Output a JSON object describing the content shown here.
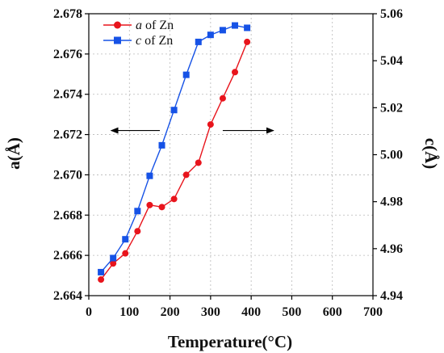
{
  "chart_data": {
    "type": "line",
    "xlabel": "Temperature(°C)",
    "ylabel_left": "a(Å)",
    "ylabel_right": "c(Å)",
    "xlim": [
      0,
      700
    ],
    "ylim_left": [
      2.664,
      2.678
    ],
    "ylim_right": [
      4.94,
      5.06
    ],
    "x_ticks": [
      "0",
      "100",
      "200",
      "300",
      "400",
      "500",
      "600",
      "700"
    ],
    "y_left_ticks": [
      "2.664",
      "2.666",
      "2.668",
      "2.670",
      "2.672",
      "2.674",
      "2.676",
      "2.678"
    ],
    "y_right_ticks": [
      "4.94",
      "4.96",
      "4.98",
      "5.00",
      "5.02",
      "5.04",
      "5.06"
    ],
    "grid": true,
    "legend_position": "top-left",
    "series": [
      {
        "name_italic": "a",
        "name_rest": " of Zn",
        "axis": "left",
        "color": "#e8141c",
        "marker": "circle",
        "x": [
          30,
          60,
          90,
          120,
          150,
          180,
          210,
          240,
          270,
          300,
          330,
          360,
          390
        ],
        "y": [
          2.6648,
          2.6656,
          2.6661,
          2.6672,
          2.6685,
          2.6684,
          2.6688,
          2.67,
          2.6706,
          2.6725,
          2.6738,
          2.6751,
          2.6766
        ]
      },
      {
        "name_italic": "c",
        "name_rest": " of Zn",
        "axis": "right",
        "color": "#1652e6",
        "marker": "square",
        "x": [
          30,
          60,
          90,
          120,
          150,
          180,
          210,
          240,
          270,
          300,
          330,
          360,
          390
        ],
        "y": [
          4.95,
          4.956,
          4.964,
          4.976,
          4.991,
          5.004,
          5.019,
          5.034,
          5.048,
          5.051,
          5.053,
          5.055,
          5.054
        ]
      }
    ],
    "annotations": [
      {
        "type": "arrow",
        "direction": "left",
        "points_to_axis": "left",
        "y_left": 2.6722,
        "x_from": 175,
        "x_to": 55
      },
      {
        "type": "arrow",
        "direction": "right",
        "points_to_axis": "right",
        "y_left": 2.6722,
        "x_from": 330,
        "x_to": 455
      }
    ]
  }
}
